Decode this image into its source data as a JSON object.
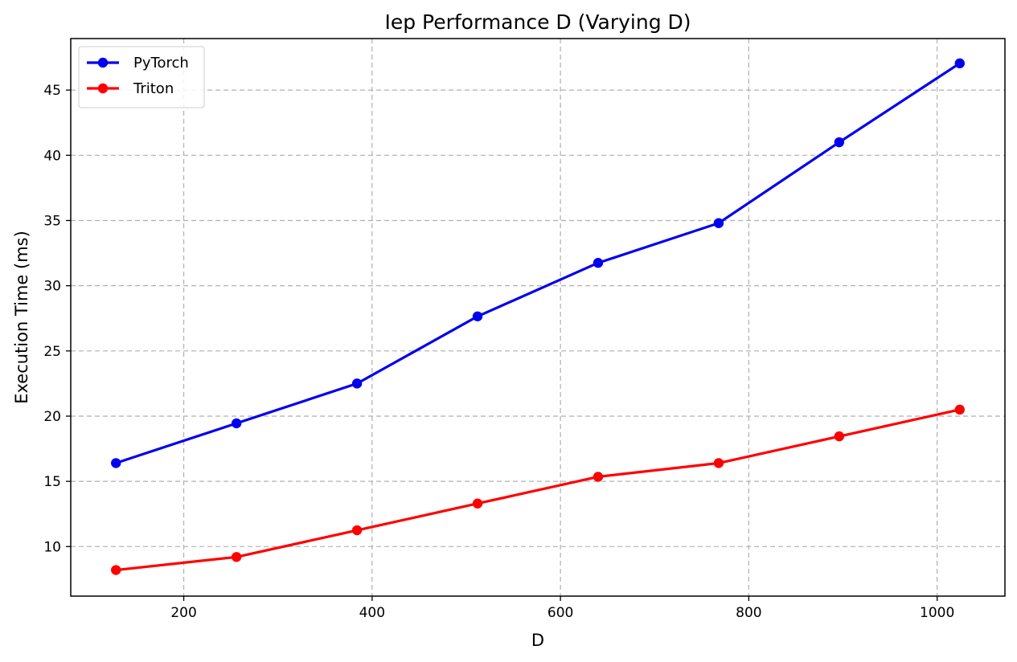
{
  "chart_data": {
    "type": "line",
    "title": "Iep Performance D (Varying D)",
    "xlabel": "D",
    "ylabel": "Execution Time (ms)",
    "x": [
      128,
      256,
      384,
      512,
      640,
      768,
      896,
      1024
    ],
    "xlim": [
      80,
      1072
    ],
    "ylim": [
      6.2,
      48.95
    ],
    "xticks": [
      200,
      400,
      600,
      800,
      1000
    ],
    "yticks": [
      10,
      15,
      20,
      25,
      30,
      35,
      40,
      45
    ],
    "grid": true,
    "legend_position": "top-left",
    "series": [
      {
        "name": "PyTorch",
        "color": "#0000ee",
        "values": [
          16.4,
          19.45,
          22.5,
          27.65,
          31.75,
          34.8,
          41.0,
          47.05
        ]
      },
      {
        "name": "Triton",
        "color": "#ff0000",
        "values": [
          8.2,
          9.2,
          11.25,
          13.3,
          15.35,
          16.4,
          18.45,
          20.5
        ]
      }
    ]
  }
}
